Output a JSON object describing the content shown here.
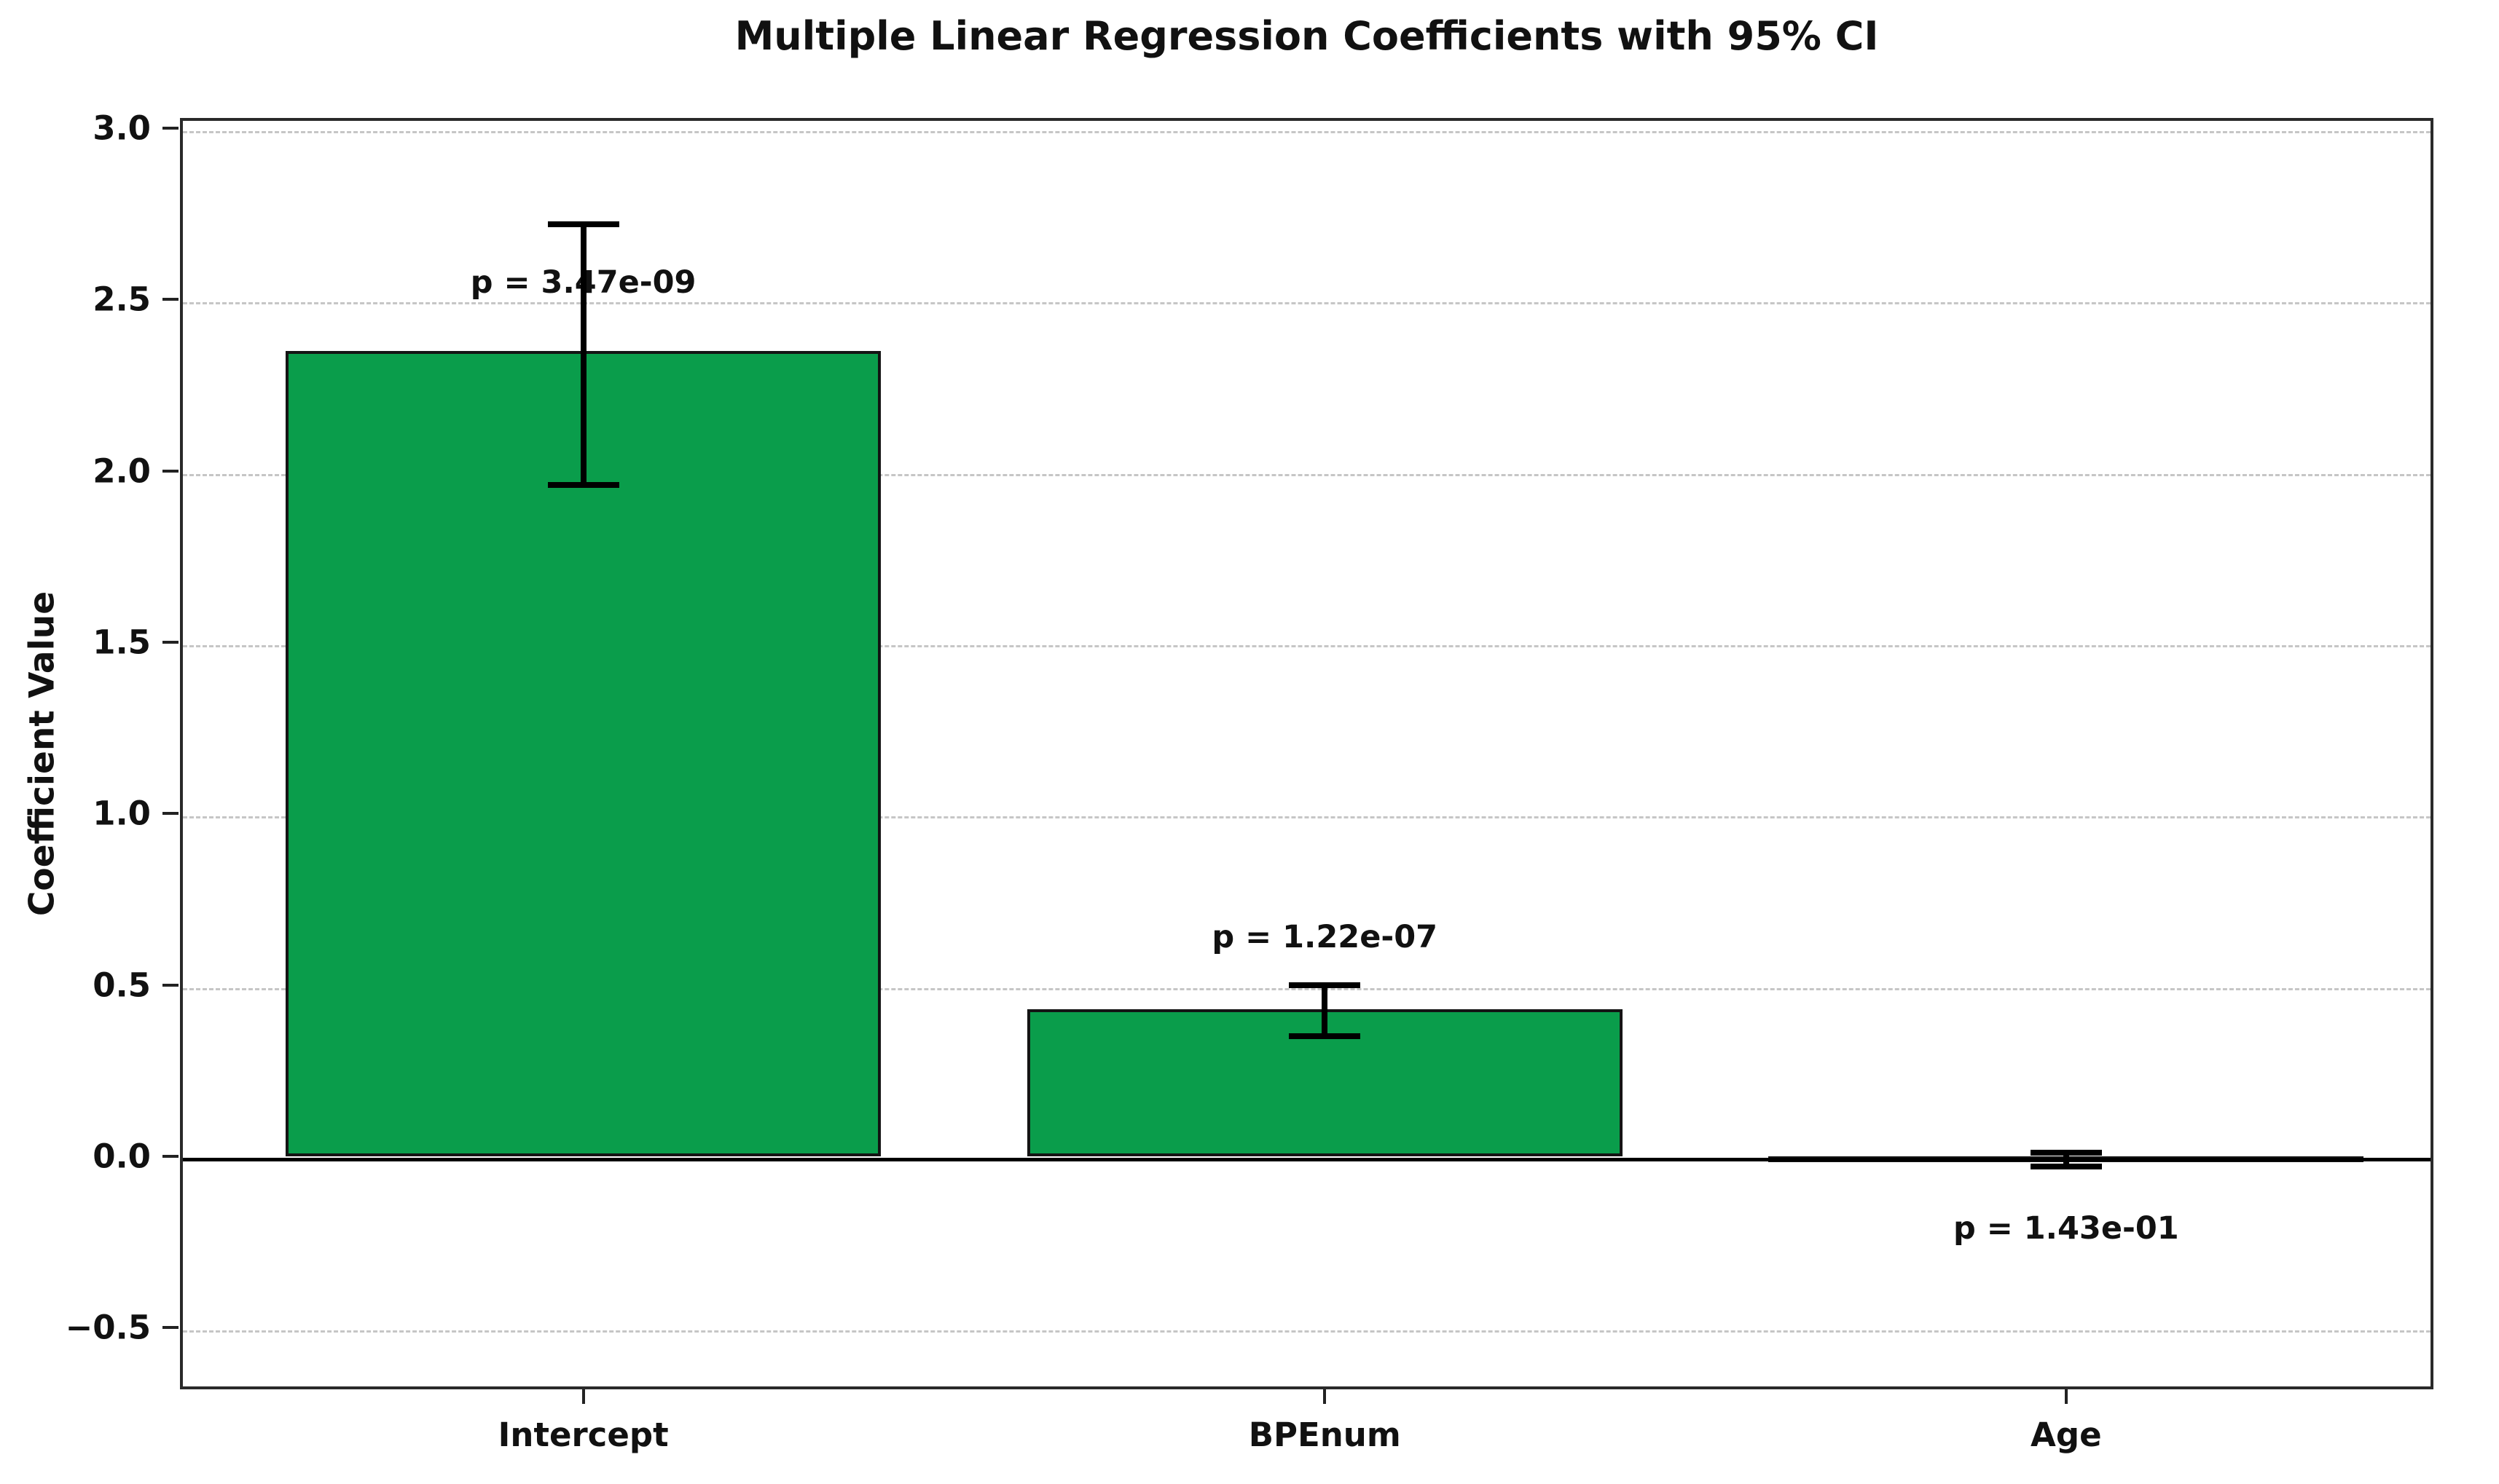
{
  "figure": {
    "title": "Multiple Linear Regression Coefficients with 95% CI",
    "ylabel": "Coefficient Value"
  },
  "chart_data": {
    "type": "bar",
    "title": "Multiple Linear Regression Coefficients with 95% CI",
    "xlabel": "",
    "ylabel": "Coefficient Value",
    "categories": [
      "Intercept",
      "BPEnum",
      "Age"
    ],
    "values": [
      2.35,
      0.43,
      -0.01
    ],
    "ci_low": [
      1.96,
      0.35,
      -0.03
    ],
    "ci_high": [
      2.72,
      0.5,
      0.01
    ],
    "p_values": [
      "3.47e-09",
      "1.22e-07",
      "1.43e-01"
    ],
    "p_labels": [
      "p = 3.47e-09",
      "p = 1.22e-07",
      "p = 1.43e-01"
    ],
    "p_label_y": [
      2.55,
      0.64,
      -0.21
    ],
    "yticks": [
      3.0,
      2.5,
      2.0,
      1.5,
      1.0,
      0.5,
      0.0,
      -0.5
    ],
    "ytick_labels": [
      "3.0",
      "2.5",
      "2.0",
      "1.5",
      "1.0",
      "0.5",
      "0.0",
      "−0.5"
    ],
    "ylim": [
      -0.68,
      3.03
    ],
    "grid": "horizontal-dashed",
    "zero_line": true,
    "legend_position": "none",
    "bar_color": "#0a9d4b",
    "bar_edge_color": "#141414",
    "error_bar_color": "#000000",
    "grid_color": "#c6c6c6",
    "text_color": "#111111"
  }
}
